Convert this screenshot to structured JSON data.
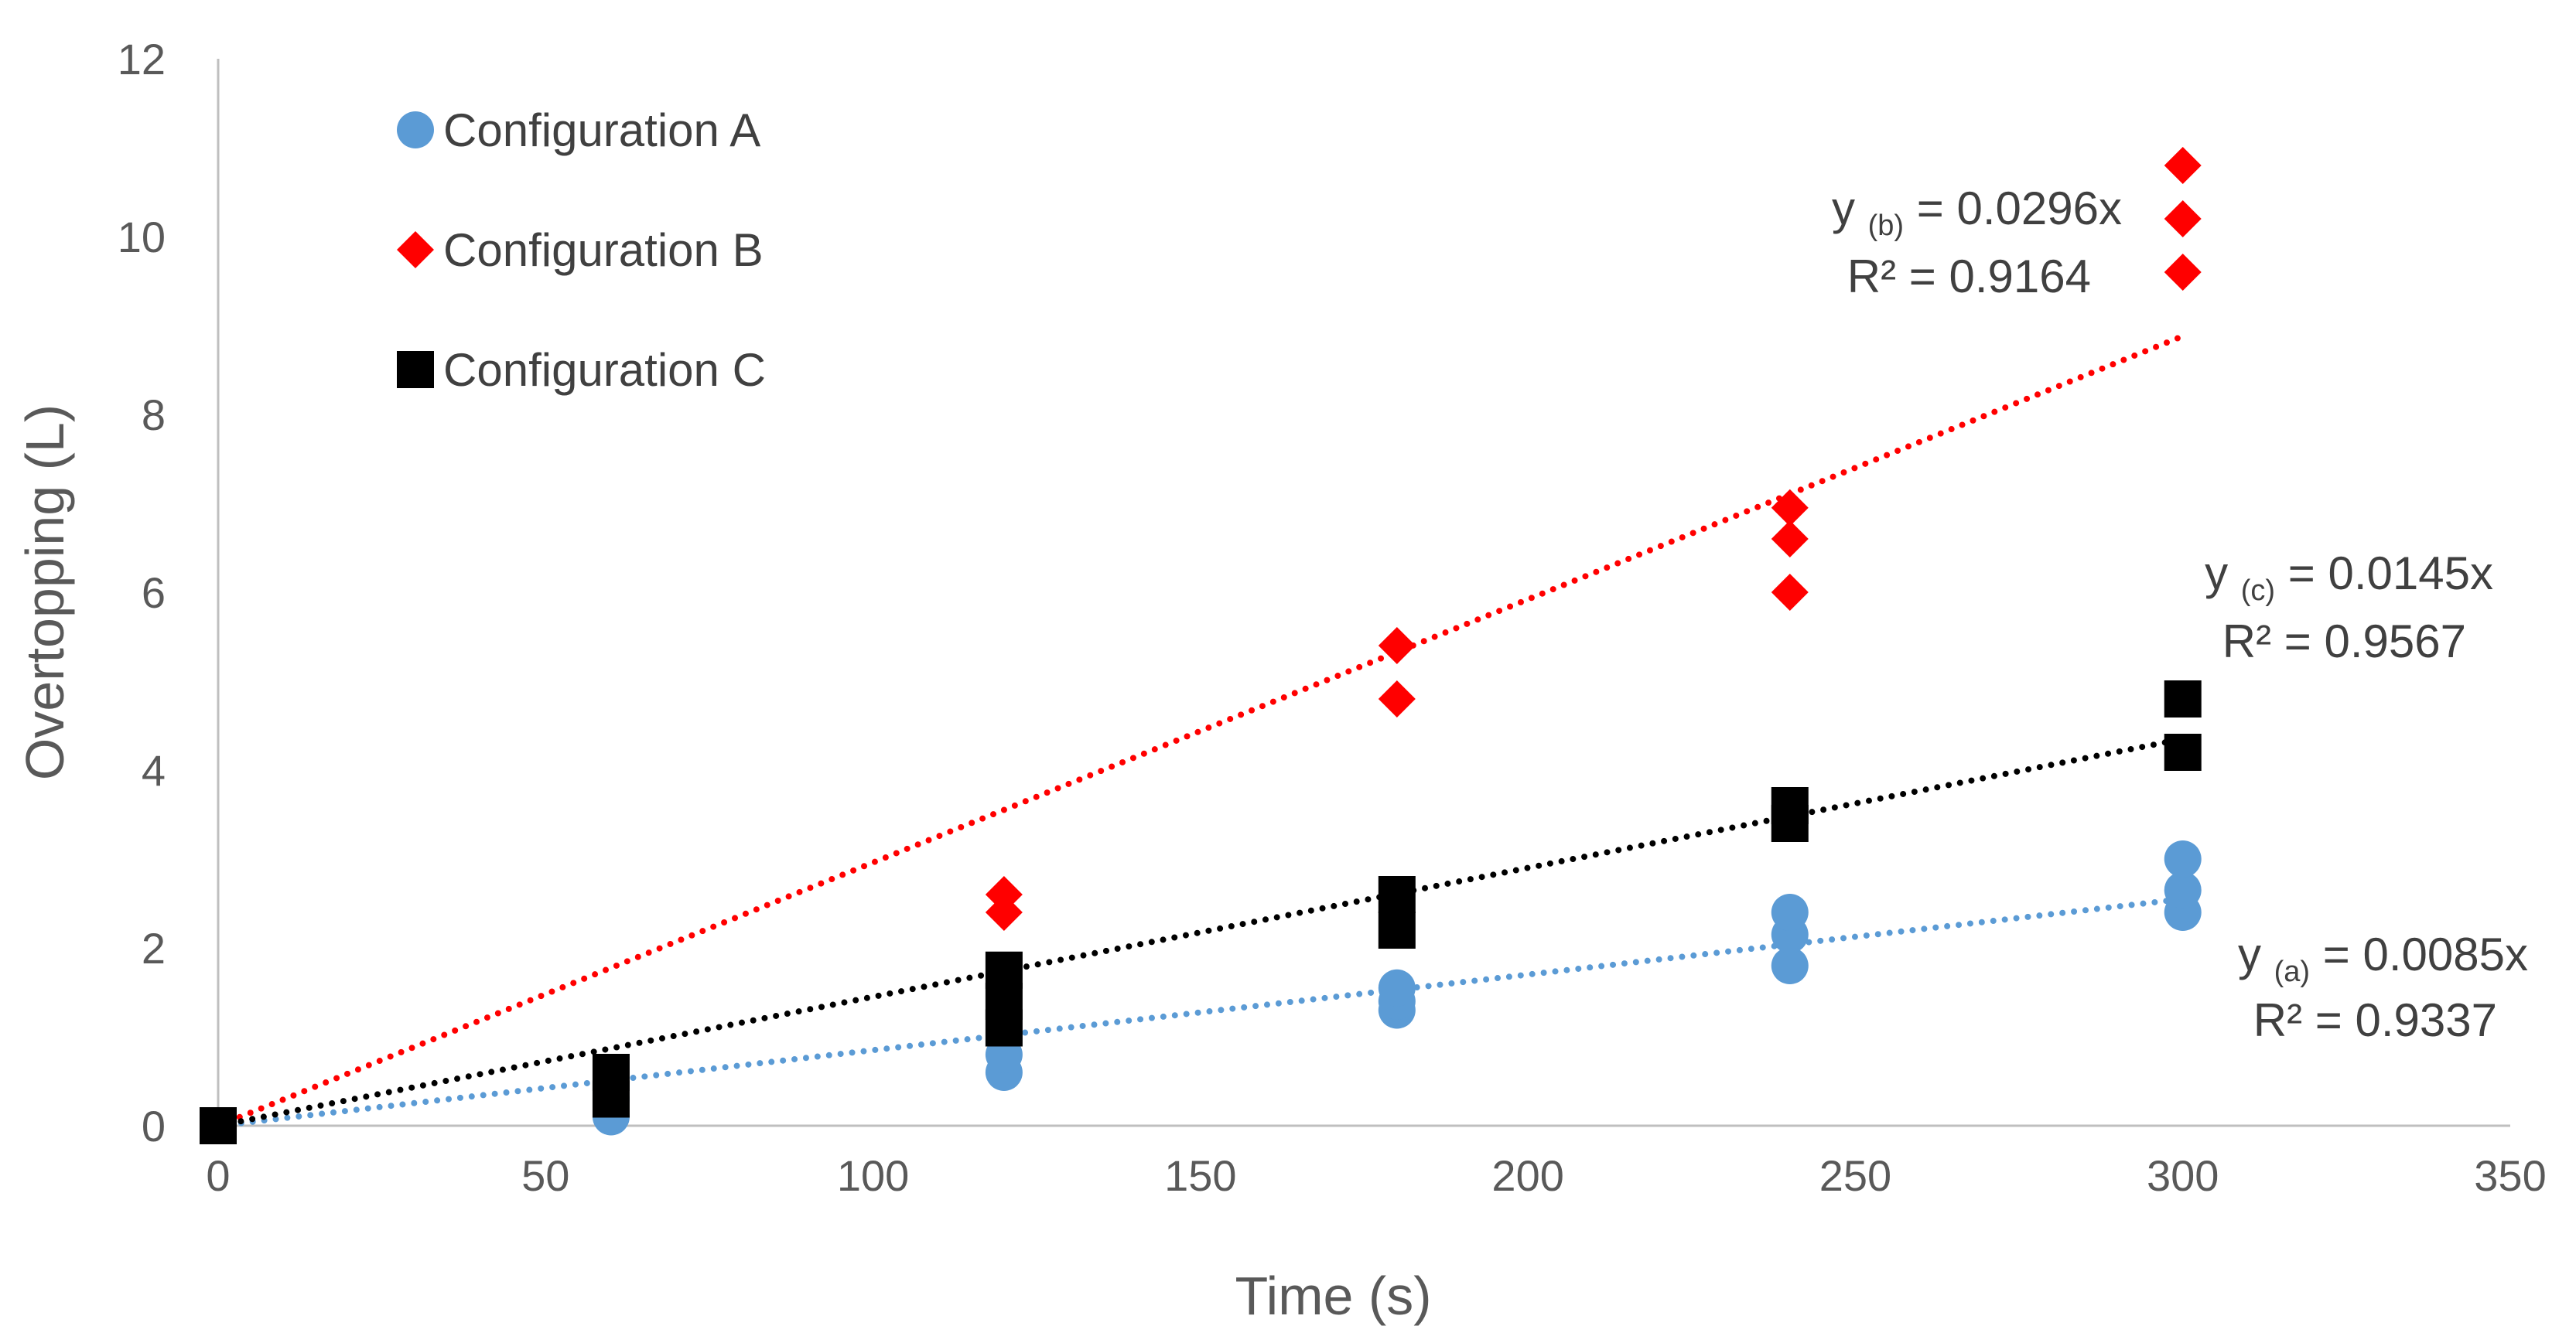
{
  "chart_data": {
    "type": "scatter",
    "title": "",
    "xlabel": "Time (s)",
    "ylabel": "Overtopping (L)",
    "xlim": [
      0,
      350
    ],
    "ylim": [
      0,
      12
    ],
    "xticks": [
      0,
      50,
      100,
      150,
      200,
      250,
      300,
      350
    ],
    "yticks": [
      0,
      2,
      4,
      6,
      8,
      10,
      12
    ],
    "grid": false,
    "legend_position": "top-left",
    "series": [
      {
        "name": "Configuration A",
        "marker": "circle",
        "color": "#5B9BD5",
        "points": [
          [
            0,
            0
          ],
          [
            60,
            0.1
          ],
          [
            60,
            0.3
          ],
          [
            120,
            0.6
          ],
          [
            120,
            0.8
          ],
          [
            180,
            1.3
          ],
          [
            180,
            1.4
          ],
          [
            180,
            1.55
          ],
          [
            240,
            1.8
          ],
          [
            240,
            2.15
          ],
          [
            240,
            2.4
          ],
          [
            300,
            2.4
          ],
          [
            300,
            2.65
          ],
          [
            300,
            3.0
          ]
        ],
        "trendline": {
          "slope": 0.0085,
          "x_range": [
            0,
            300
          ],
          "y_prefix": "y",
          "y_sub": "(a)",
          "equation_rest": "= 0.0085x",
          "r2_label": "R² = 0.9337"
        }
      },
      {
        "name": "Configuration B",
        "marker": "diamond",
        "color": "#FF0000",
        "points": [
          [
            120,
            2.4
          ],
          [
            120,
            2.6
          ],
          [
            180,
            4.8
          ],
          [
            180,
            5.4
          ],
          [
            240,
            6.0
          ],
          [
            240,
            6.6
          ],
          [
            240,
            6.95
          ],
          [
            300,
            9.6
          ],
          [
            300,
            10.2
          ],
          [
            300,
            10.8
          ]
        ],
        "trendline": {
          "slope": 0.0296,
          "x_range": [
            0,
            300
          ],
          "y_prefix": "y",
          "y_sub": "(b)",
          "equation_rest": "= 0.0296x",
          "r2_label": "R² = 0.9164"
        }
      },
      {
        "name": "Configuration C",
        "marker": "square",
        "color": "#000000",
        "points": [
          [
            0,
            0
          ],
          [
            60,
            0.3
          ],
          [
            60,
            0.6
          ],
          [
            120,
            1.1
          ],
          [
            120,
            1.4
          ],
          [
            120,
            1.75
          ],
          [
            180,
            2.2
          ],
          [
            180,
            2.6
          ],
          [
            240,
            3.4
          ],
          [
            240,
            3.6
          ],
          [
            300,
            4.2
          ],
          [
            300,
            4.8
          ]
        ],
        "trendline": {
          "slope": 0.0145,
          "x_range": [
            0,
            300
          ],
          "y_prefix": "y",
          "y_sub": "(c)",
          "equation_rest": "= 0.0145x",
          "r2_label": "R² = 0.9567"
        }
      }
    ]
  }
}
